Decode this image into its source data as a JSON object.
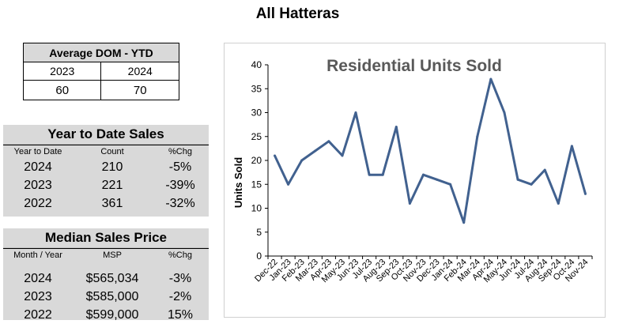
{
  "page_title": "All Hatteras",
  "avg_dom": {
    "title": "Average DOM - YTD",
    "years": [
      "2023",
      "2024"
    ],
    "values": [
      "60",
      "70"
    ]
  },
  "ytd_sales": {
    "title": "Year to Date Sales",
    "headers": [
      "Year to Date",
      "Count",
      "%Chg"
    ],
    "rows": [
      [
        "2024",
        "210",
        "-5%"
      ],
      [
        "2023",
        "221",
        "-39%"
      ],
      [
        "2022",
        "361",
        "-32%"
      ]
    ]
  },
  "median_price": {
    "title": "Median Sales Price",
    "headers": [
      "Month / Year",
      "MSP",
      "%Chg"
    ],
    "rows": [
      [
        "2024",
        "$565,034",
        "-3%"
      ],
      [
        "2023",
        "$585,000",
        "-2%"
      ],
      [
        "2022",
        "$599,000",
        "15%"
      ]
    ]
  },
  "chart_data": {
    "type": "line",
    "title": "Residential Units Sold",
    "xlabel": "",
    "ylabel": "Units Sold",
    "ylim": [
      0,
      40
    ],
    "yticks": [
      0,
      5,
      10,
      15,
      20,
      25,
      30,
      35,
      40
    ],
    "categories": [
      "Dec-22",
      "Jan-23",
      "Feb-23",
      "Mar-23",
      "Apr-23",
      "May-23",
      "Jun-23",
      "Jul-23",
      "Aug-23",
      "Sep-23",
      "Oct-23",
      "Nov-23",
      "Dec-23",
      "Jan-24",
      "Feb-24",
      "Mar-24",
      "Apr-24",
      "May-24",
      "Jun-24",
      "Jul-24",
      "Aug-24",
      "Sep-24",
      "Oct-24",
      "Nov-24"
    ],
    "values": [
      21,
      15,
      20,
      22,
      24,
      21,
      30,
      17,
      17,
      27,
      11,
      17,
      16,
      15,
      7,
      25,
      37,
      30,
      16,
      15,
      18,
      11,
      23,
      13
    ],
    "line_color": "#41618f",
    "grid": false,
    "legend": "none"
  }
}
